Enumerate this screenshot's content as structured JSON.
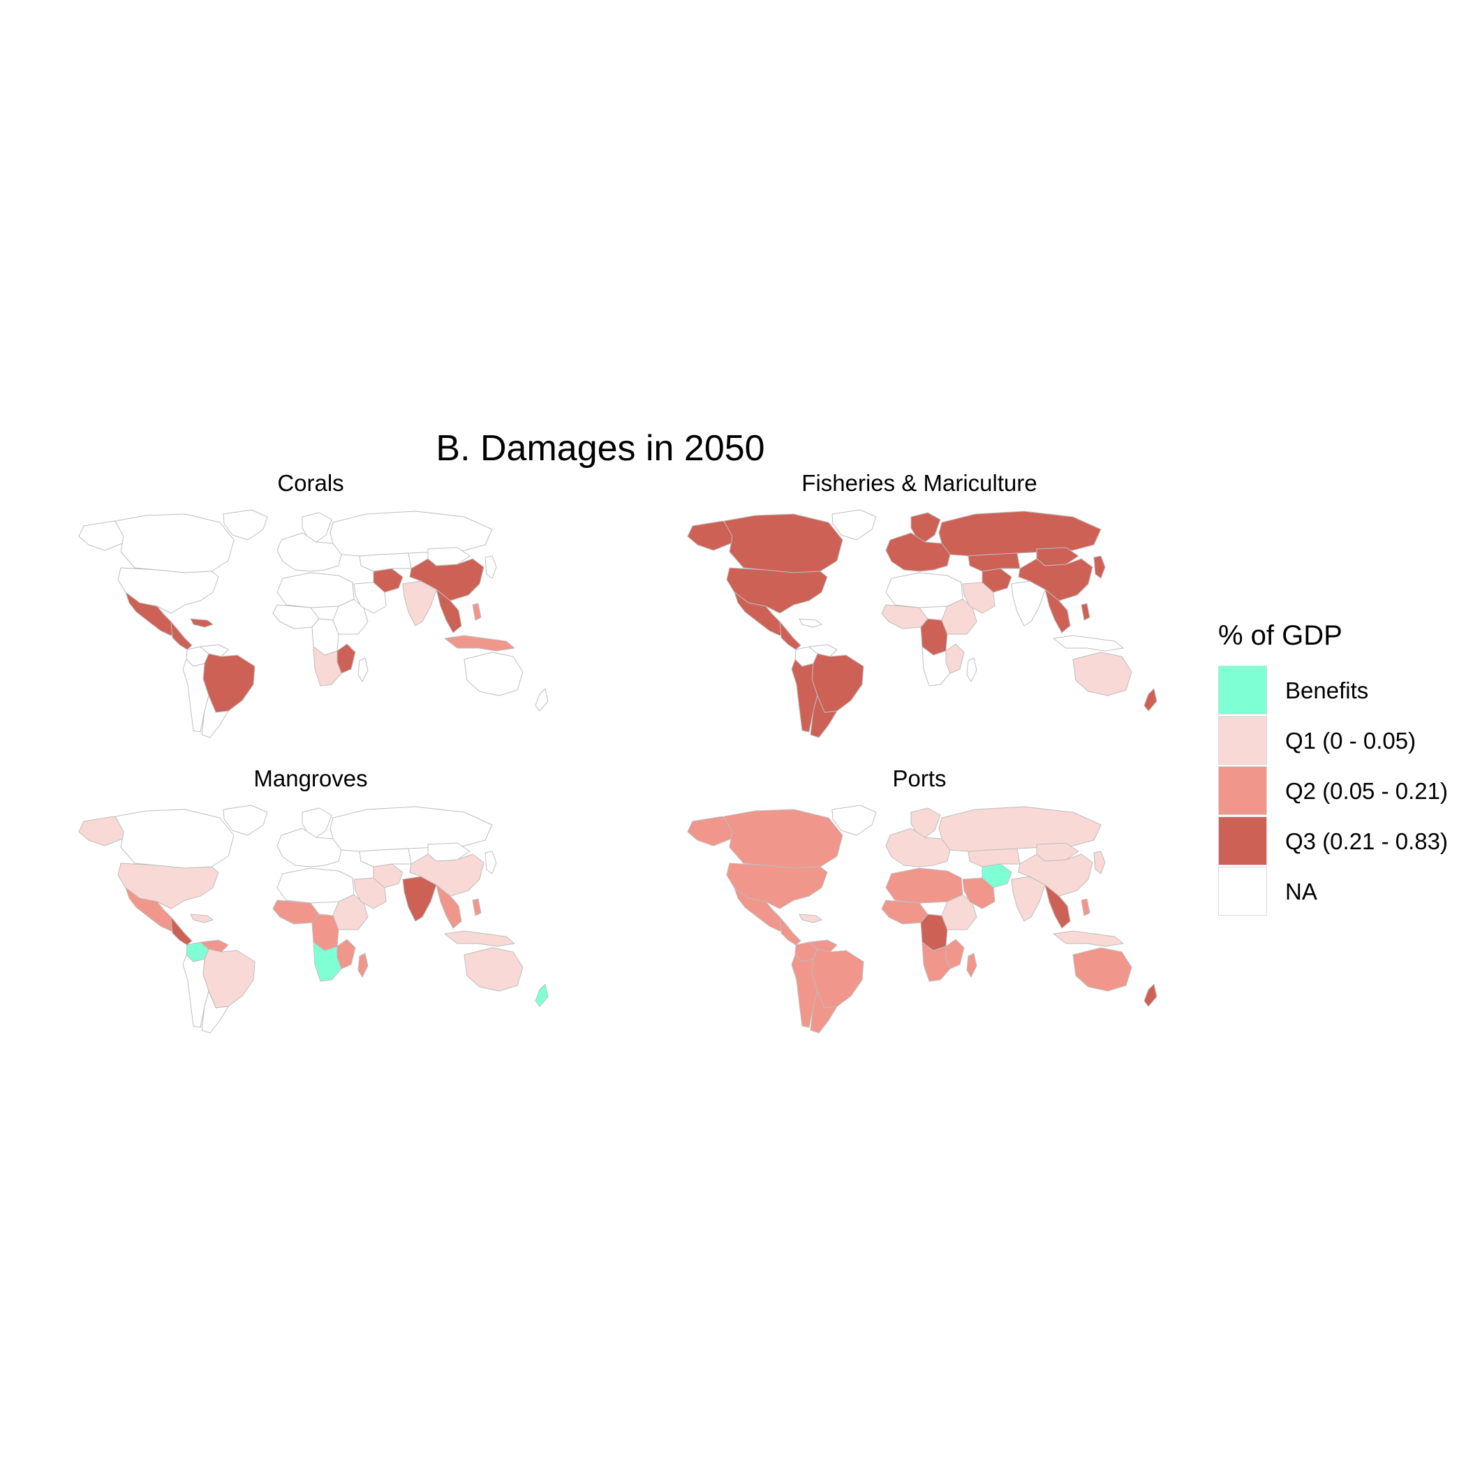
{
  "title": "B. Damages in 2050",
  "colors": {
    "Benefits": "#7fffd4",
    "Q1": "#f9d9d5",
    "Q2": "#f0968b",
    "Q3": "#cd6155",
    "NA": "#ffffff",
    "border": "#bdbdbd"
  },
  "legend": {
    "title": "% of GDP",
    "items": [
      {
        "key": "Benefits",
        "label": "Benefits"
      },
      {
        "key": "Q1",
        "label": "Q1 (0 - 0.05)"
      },
      {
        "key": "Q2",
        "label": "Q2 (0.05 - 0.21)"
      },
      {
        "key": "Q3",
        "label": "Q3 (0.21 - 0.83)"
      },
      {
        "key": "NA",
        "label": "NA"
      }
    ]
  },
  "panels": [
    {
      "title": "Corals",
      "fills": {
        "canada": "NA",
        "usa": "NA",
        "greenland": "NA",
        "alaska": "NA",
        "mexico": "Q3",
        "central_am": "Q3",
        "caribbean": "Q3",
        "brazil": "Q3",
        "andes": "NA",
        "colombia": "NA",
        "argentina": "NA",
        "venezuela": "NA",
        "europe": "NA",
        "scandinavia": "NA",
        "russia": "NA",
        "north_africa": "NA",
        "west_africa": "NA",
        "central_africa": "NA",
        "east_africa": "NA",
        "mozambique": "Q3",
        "southern_africa": "Q1",
        "madagascar": "NA",
        "arabia": "NA",
        "iran": "Q3",
        "central_asia": "NA",
        "india": "Q1",
        "china": "Q3",
        "mongolia": "NA",
        "se_asia": "Q3",
        "japan": "NA",
        "indonesia": "Q2",
        "philippines": "Q2",
        "australia": "NA",
        "nz": "NA"
      }
    },
    {
      "title": "Fisheries & Mariculture",
      "fills": {
        "canada": "Q3",
        "usa": "Q3",
        "greenland": "NA",
        "alaska": "Q3",
        "mexico": "Q3",
        "central_am": "Q3",
        "caribbean": "NA",
        "brazil": "Q3",
        "andes": "Q3",
        "colombia": "NA",
        "argentina": "Q3",
        "venezuela": "NA",
        "europe": "Q3",
        "scandinavia": "Q3",
        "russia": "Q3",
        "north_africa": "NA",
        "west_africa": "Q1",
        "central_africa": "Q3",
        "east_africa": "Q1",
        "mozambique": "Q1",
        "southern_africa": "NA",
        "madagascar": "NA",
        "arabia": "Q1",
        "iran": "Q3",
        "central_asia": "Q3",
        "india": "NA",
        "china": "Q3",
        "mongolia": "Q3",
        "se_asia": "Q3",
        "japan": "Q3",
        "indonesia": "NA",
        "philippines": "Q3",
        "australia": "Q1",
        "nz": "Q3"
      }
    },
    {
      "title": "Mangroves",
      "fills": {
        "canada": "NA",
        "usa": "Q1",
        "greenland": "NA",
        "alaska": "Q1",
        "mexico": "Q2",
        "central_am": "Q3",
        "caribbean": "Q1",
        "brazil": "Q1",
        "andes": "NA",
        "colombia": "Benefits",
        "argentina": "NA",
        "venezuela": "Q2",
        "europe": "NA",
        "scandinavia": "NA",
        "russia": "NA",
        "north_africa": "NA",
        "west_africa": "Q2",
        "central_africa": "Q2",
        "east_africa": "Q1",
        "mozambique": "Q2",
        "southern_africa": "Benefits",
        "madagascar": "Q2",
        "arabia": "Q1",
        "iran": "Q1",
        "central_asia": "NA",
        "india": "Q3",
        "china": "Q1",
        "mongolia": "NA",
        "se_asia": "Q2",
        "japan": "NA",
        "indonesia": "Q1",
        "philippines": "Q2",
        "australia": "Q1",
        "nz": "Benefits"
      }
    },
    {
      "title": "Ports",
      "fills": {
        "canada": "Q2",
        "usa": "Q2",
        "greenland": "NA",
        "alaska": "Q2",
        "mexico": "Q2",
        "central_am": "Q2",
        "caribbean": "Q1",
        "brazil": "Q2",
        "andes": "Q2",
        "colombia": "Q2",
        "argentina": "Q2",
        "venezuela": "Q2",
        "europe": "Q1",
        "scandinavia": "Q1",
        "russia": "Q1",
        "north_africa": "Q2",
        "west_africa": "Q2",
        "central_africa": "Q3",
        "east_africa": "Q1",
        "mozambique": "Q2",
        "southern_africa": "Q2",
        "madagascar": "Q2",
        "arabia": "Q2",
        "iran": "Benefits",
        "central_asia": "Q1",
        "india": "Q1",
        "china": "Q1",
        "mongolia": "Q1",
        "se_asia": "Q3",
        "japan": "Q1",
        "indonesia": "Q1",
        "philippines": "Q2",
        "australia": "Q2",
        "nz": "Q3"
      }
    }
  ]
}
